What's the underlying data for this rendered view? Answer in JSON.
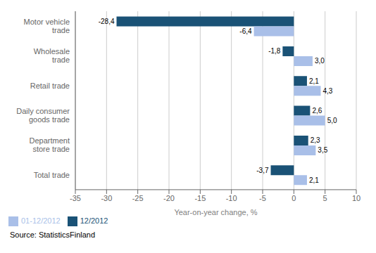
{
  "chart_data": {
    "type": "bar",
    "orientation": "horizontal",
    "categories": [
      "Motor vehicle\ntrade",
      "Wholesale\ntrade",
      "Retail trade",
      "Daily consumer\ngoods trade",
      "Department\nstore trade",
      "Total trade"
    ],
    "series": [
      {
        "name": "12/2012",
        "color": "#1a5276",
        "values": [
          -28.4,
          -1.8,
          2.1,
          2.6,
          2.3,
          -3.7
        ],
        "value_labels": [
          "-28,4",
          "-1,8",
          "2,1",
          "2,6",
          "2,3",
          "-3,7"
        ]
      },
      {
        "name": "01-12/2012",
        "color": "#a9bfe8",
        "values": [
          -6.4,
          3.0,
          4.3,
          5.0,
          3.5,
          2.1
        ],
        "value_labels": [
          "-6,4",
          "3,0",
          "4,3",
          "5,0",
          "3,5",
          "2,1"
        ]
      }
    ],
    "xlim": [
      -35,
      10
    ],
    "xticks": [
      -35,
      -30,
      -25,
      -20,
      -15,
      -10,
      -5,
      0,
      5,
      10
    ],
    "xlabel": "Year-on-year change, %",
    "source": "Source: StatisticsFinland",
    "data_labels": true,
    "grid": true,
    "legend": "lower left"
  }
}
